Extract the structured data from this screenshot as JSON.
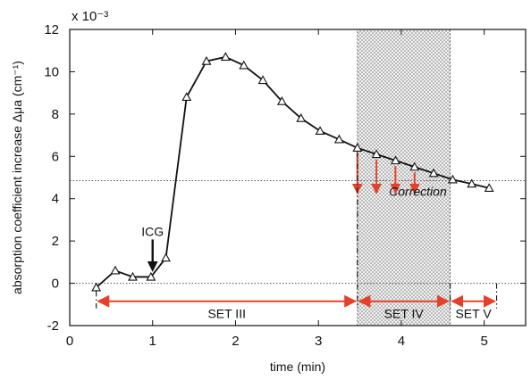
{
  "chart_data": {
    "type": "line",
    "xlabel": "time (min)",
    "ylabel": "absorption coefficient increase Δμa (cm⁻¹)",
    "y_exponent": "x 10⁻³",
    "xlim": [
      0,
      5.5
    ],
    "ylim": [
      -2,
      12
    ],
    "xticks": [
      0,
      1,
      2,
      3,
      4,
      5
    ],
    "yticks": [
      -2,
      0,
      2,
      4,
      6,
      8,
      10,
      12
    ],
    "grid": false,
    "series": [
      {
        "marker": "triangle",
        "x": [
          0.32,
          0.55,
          0.76,
          0.98,
          1.16,
          1.41,
          1.65,
          1.88,
          2.1,
          2.33,
          2.56,
          2.79,
          3.02,
          3.25,
          3.47,
          3.7,
          3.93,
          4.16,
          4.39,
          4.62,
          4.85,
          5.06
        ],
        "y": [
          -0.2,
          0.6,
          0.3,
          0.3,
          1.2,
          8.8,
          10.5,
          10.7,
          10.3,
          9.6,
          8.6,
          7.8,
          7.2,
          6.8,
          6.4,
          6.1,
          5.8,
          5.5,
          5.2,
          4.9,
          4.7,
          4.5
        ]
      }
    ],
    "reference_lines": [
      {
        "y": 0,
        "style": "dotted"
      },
      {
        "y": 4.85,
        "style": "dotted"
      }
    ],
    "shaded_region": {
      "x0": 3.47,
      "x1": 4.59,
      "label": "Correction"
    },
    "correction_arrows": [
      {
        "x": 3.47,
        "from": 6.4,
        "to": 4.85
      },
      {
        "x": 3.7,
        "from": 6.1,
        "to": 4.85
      },
      {
        "x": 3.93,
        "from": 5.8,
        "to": 4.85
      },
      {
        "x": 4.16,
        "from": 5.5,
        "to": 4.85
      }
    ],
    "phases": [
      {
        "label": "SET III",
        "x0": 0.32,
        "x1": 3.47
      },
      {
        "label": "SET IV",
        "x0": 3.47,
        "x1": 4.59
      },
      {
        "label": "SET V",
        "x0": 4.59,
        "x1": 5.15
      }
    ],
    "phase_arrow_y": -0.85,
    "annotations": [
      {
        "label": "ICG",
        "x": 1.0,
        "y": 0.3
      }
    ],
    "colors": {
      "phase_arrow": "#e5412a",
      "correction_arrow": "#e5412a",
      "line": "#111111"
    }
  }
}
